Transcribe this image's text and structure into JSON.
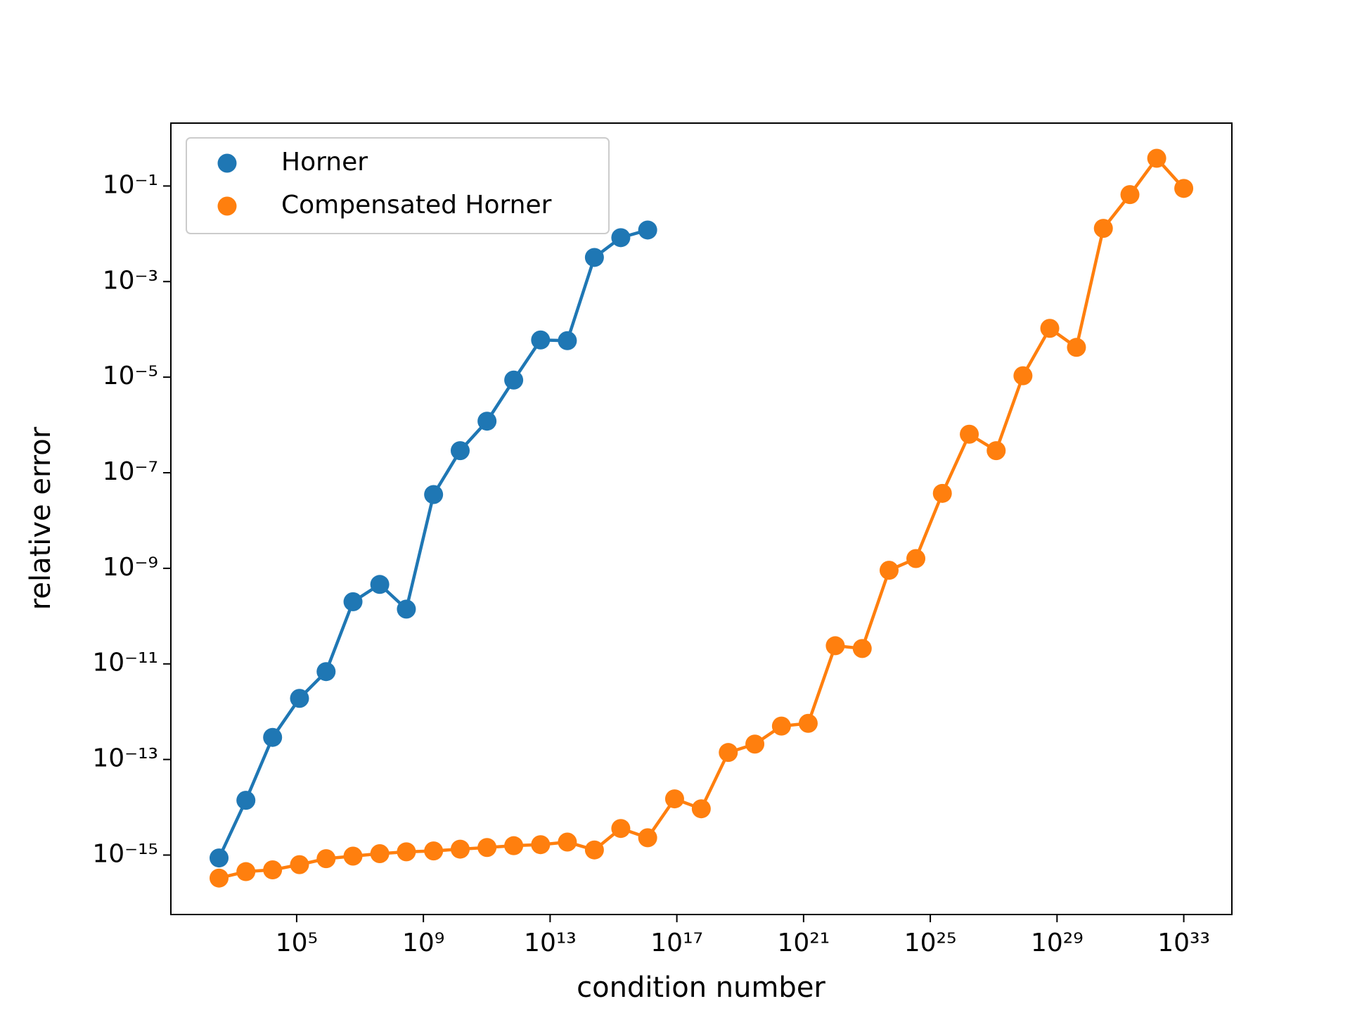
{
  "chart_data": {
    "type": "line",
    "xlabel": "condition number",
    "ylabel": "relative error",
    "xscale": "log",
    "yscale": "log",
    "legend": "upper left",
    "grid": false,
    "xlim": [
      10.7,
      3.3e+34
    ],
    "ylim": [
      5.7e-17,
      2.07
    ],
    "xticks": [
      {
        "value": 100000.0,
        "label": "10⁵"
      },
      {
        "value": 1000000000.0,
        "label": "10⁹"
      },
      {
        "value": 10000000000000.0,
        "label": "10¹³"
      },
      {
        "value": 1e+17,
        "label": "10¹⁷"
      },
      {
        "value": 1e+21,
        "label": "10²¹"
      },
      {
        "value": 1e+25,
        "label": "10²⁵"
      },
      {
        "value": 1e+29,
        "label": "10²⁹"
      },
      {
        "value": 1e+33,
        "label": "10³³"
      }
    ],
    "yticks": [
      {
        "value": 0.1,
        "label": "10⁻¹"
      },
      {
        "value": 0.001,
        "label": "10⁻³"
      },
      {
        "value": 1e-05,
        "label": "10⁻⁵"
      },
      {
        "value": 1e-07,
        "label": "10⁻⁷"
      },
      {
        "value": 1e-09,
        "label": "10⁻⁹"
      },
      {
        "value": 1e-11,
        "label": "10⁻¹¹"
      },
      {
        "value": 1e-13,
        "label": "10⁻¹³"
      },
      {
        "value": 1e-15,
        "label": "10⁻¹⁵"
      }
    ],
    "series": [
      {
        "name": "Horner",
        "color": "#1f77b4",
        "x": [
          355,
          2500,
          17400,
          123000,
          850000,
          6000000.0,
          42000000.0,
          290000000.0,
          2100000000.0,
          14500000000.0,
          102000000000.0,
          710000000000.0,
          5000000000000.0,
          35000000000000.0,
          250000000000000.0,
          1700000000000000.0,
          1.2e+16
        ],
        "values": [
          8.7e-16,
          1.4e-14,
          2.9e-13,
          1.9e-12,
          6.9e-12,
          2e-10,
          4.6e-10,
          1.4e-10,
          3.5e-08,
          2.9e-07,
          1.2e-06,
          8.7e-06,
          6e-05,
          5.8e-05,
          0.0032,
          0.0083,
          0.012
        ]
      },
      {
        "name": "Compensated Horner",
        "color": "#ff7f0e",
        "x": [
          355,
          2500,
          17400,
          123000,
          850000,
          6000000.0,
          42000000.0,
          290000000.0,
          2100000000.0,
          14500000000.0,
          102000000000.0,
          710000000000.0,
          5000000000000.0,
          35000000000000.0,
          250000000000000.0,
          1700000000000000.0,
          1.2e+16,
          8.5e+16,
          5.9e+17,
          4.2e+18,
          2.9e+19,
          2e+20,
          1.4e+21,
          1e+22,
          7.1e+22,
          5e+23,
          3.5e+24,
          2.4e+25,
          1.7e+26,
          1.2e+27,
          8.4e+27,
          5.9e+28,
          4.1e+29,
          2.9e+30,
          2e+31,
          1.4e+32,
          1e+33
        ],
        "values": [
          3.3e-16,
          4.5e-16,
          4.9e-16,
          6.3e-16,
          8.4e-16,
          9.5e-16,
          1.07e-15,
          1.17e-15,
          1.22e-15,
          1.33e-15,
          1.44e-15,
          1.57e-15,
          1.65e-15,
          1.87e-15,
          1.28e-15,
          3.6e-15,
          2.3e-15,
          1.5e-14,
          9.3e-15,
          1.4e-13,
          2.1e-13,
          5e-13,
          5.7e-13,
          2.4e-11,
          2.1e-11,
          9.1e-10,
          1.6e-09,
          3.7e-08,
          6.4e-07,
          2.9e-07,
          1.07e-05,
          0.000105,
          4.2e-05,
          0.013,
          0.066,
          0.38,
          0.089
        ]
      }
    ]
  }
}
